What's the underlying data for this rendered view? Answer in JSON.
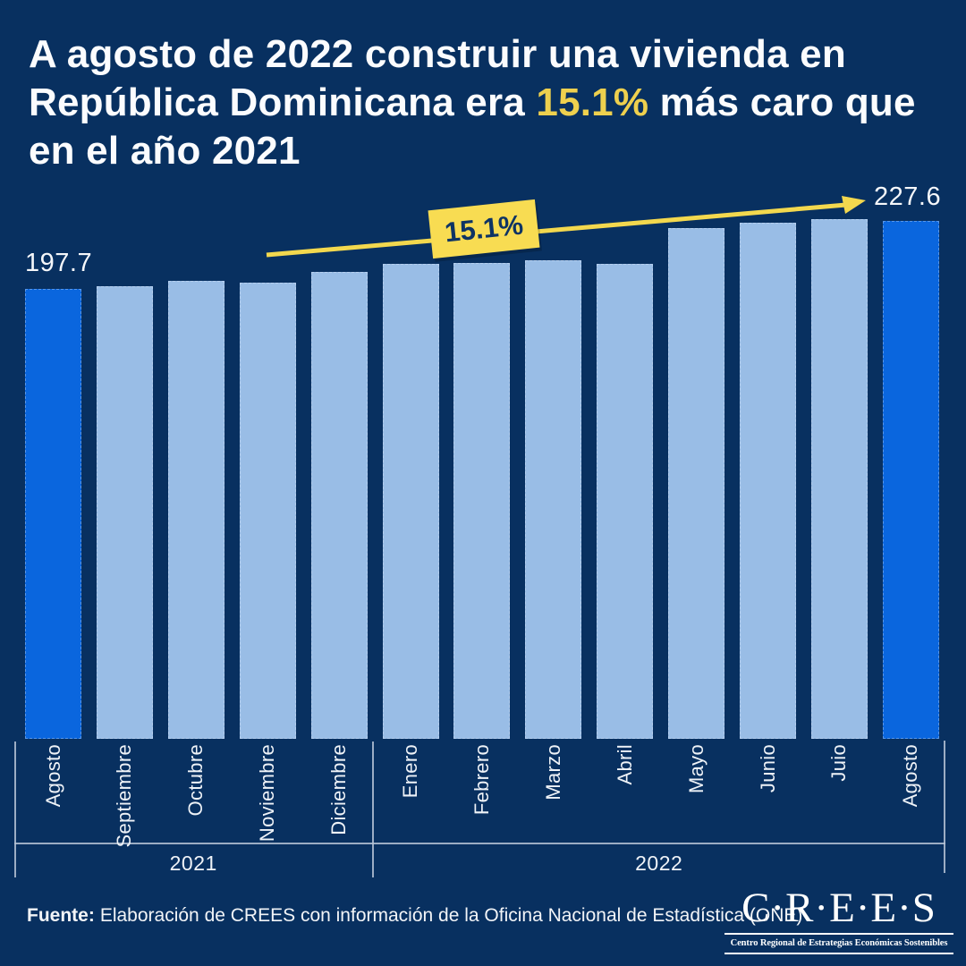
{
  "colors": {
    "background": "#083060",
    "bar": "#99bde6",
    "bar_highlight": "#0a66de",
    "accent_yellow": "#f3d84e",
    "badge_yellow": "#f8dc52",
    "title_highlight": "#eed04e",
    "text": "#ffffff",
    "badge_text": "#0e3464",
    "axis_line": "#b6c3d6"
  },
  "header": {
    "title_line1": "A agosto de 2022 construir una vivienda en",
    "title_line2_pre": "República Dominicana era ",
    "title_highlight": "15.1%",
    "title_line2_post": " más caro que",
    "title_line3": "en el año 2021"
  },
  "annotation": {
    "start_value": "197.7",
    "end_value": "227.6",
    "pct_label": "15.1%"
  },
  "chart_data": {
    "type": "bar",
    "categories": [
      "Agosto",
      "Septiembre",
      "Octubre",
      "Noviembre",
      "Diciembre",
      "Enero",
      "Febrero",
      "Marzo",
      "Abril",
      "Mayo",
      "Junio",
      "Juio",
      "Agosto"
    ],
    "values": [
      197.7,
      198.9,
      201.2,
      200.6,
      205.2,
      208.8,
      209.2,
      210.4,
      208.9,
      224.5,
      226.8,
      228.4,
      227.6
    ],
    "year_groups": [
      {
        "label": "2021",
        "span": 5
      },
      {
        "label": "2022",
        "span": 8
      }
    ],
    "highlight_indices": [
      0,
      12
    ],
    "data_labels": {
      "first": "197.7",
      "last": "227.6",
      "change": "15.1%"
    },
    "ylim": [
      0,
      230
    ],
    "grid": false,
    "legend": false
  },
  "footer": {
    "source_label": "Fuente:",
    "source_text": "Elaboración de CREES con información de la Oficina Nacional de Estadística (ONE)"
  },
  "logo": {
    "name": "C·R·E·E·S",
    "tagline": "Centro Regional de Estrategias Económicas Sostenibles"
  }
}
